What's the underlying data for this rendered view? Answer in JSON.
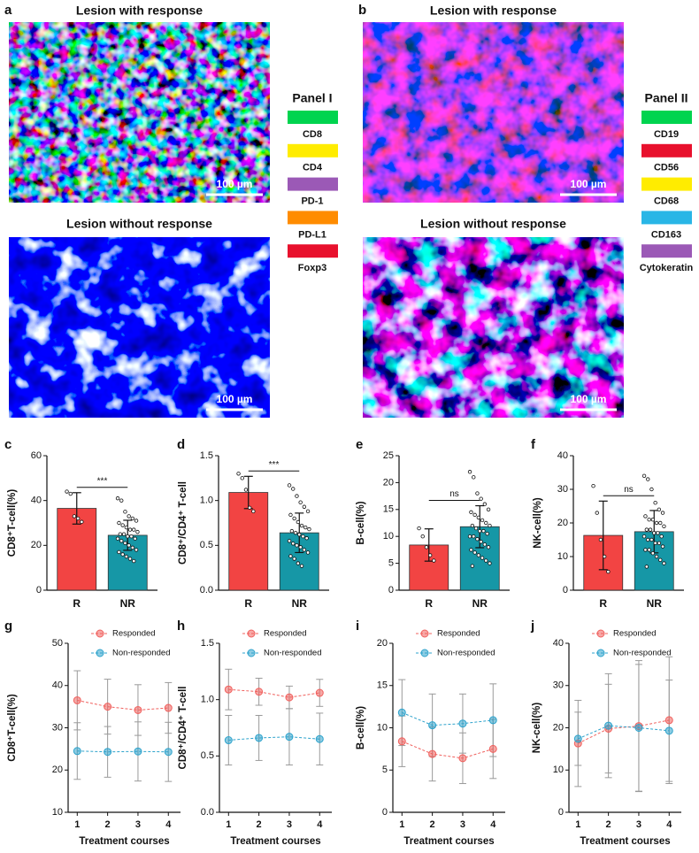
{
  "image_panels": [
    {
      "letter": "a",
      "images": [
        {
          "title": "Lesion with response",
          "scale_bar": "100 µm"
        },
        {
          "title": "Lesion without response",
          "scale_bar": "100 µm"
        }
      ],
      "legend_title": "Panel I",
      "markers": [
        {
          "name": "CD8",
          "color": "#00d44f"
        },
        {
          "name": "CD4",
          "color": "#ffec00"
        },
        {
          "name": "PD-1",
          "color": "#9b59b6"
        },
        {
          "name": "PD-L1",
          "color": "#ff8c00"
        },
        {
          "name": "Foxp3",
          "color": "#e8112d"
        }
      ]
    },
    {
      "letter": "b",
      "images": [
        {
          "title": "Lesion with response",
          "scale_bar": "100 µm"
        },
        {
          "title": "Lesion without response",
          "scale_bar": "100 µm"
        }
      ],
      "legend_title": "Panel II",
      "markers": [
        {
          "name": "CD19",
          "color": "#00d44f"
        },
        {
          "name": "CD56",
          "color": "#e8112d"
        },
        {
          "name": "CD68",
          "color": "#ffec00"
        },
        {
          "name": "CD163",
          "color": "#29b6e6"
        },
        {
          "name": "Cytokeratin",
          "color": "#9b59b6"
        }
      ]
    }
  ],
  "chart_data": [
    {
      "letter": "c",
      "type": "bar",
      "ylabel": "CD8⁺T-cell(%)",
      "categories": [
        "R",
        "NR"
      ],
      "values": [
        36.5,
        24.5
      ],
      "errors": [
        7.0,
        6.7
      ],
      "colors": [
        "#f24443",
        "#1697a6"
      ],
      "points": [
        [
          44,
          43,
          33,
          32,
          30.5
        ],
        [
          41,
          40,
          35,
          33,
          32,
          31,
          30,
          29,
          28,
          27,
          27,
          26,
          25,
          25,
          24,
          24,
          23,
          23,
          22,
          21,
          20,
          19,
          18,
          17,
          16,
          15,
          14,
          13
        ]
      ],
      "significance": "***",
      "ylim": [
        0,
        60
      ],
      "yticks": [
        0,
        20,
        40,
        60
      ]
    },
    {
      "letter": "d",
      "type": "bar",
      "ylabel": "CD8⁺/CD4⁺ T-cell",
      "categories": [
        "R",
        "NR"
      ],
      "values": [
        1.09,
        0.64
      ],
      "errors": [
        0.18,
        0.22
      ],
      "colors": [
        "#f24443",
        "#1697a6"
      ],
      "points": [
        [
          1.3,
          1.25,
          1.12,
          0.92,
          0.88
        ],
        [
          1.17,
          1.13,
          1.05,
          0.98,
          0.93,
          0.88,
          0.84,
          0.8,
          0.76,
          0.72,
          0.7,
          0.68,
          0.66,
          0.64,
          0.62,
          0.6,
          0.58,
          0.55,
          0.52,
          0.5,
          0.48,
          0.45,
          0.42,
          0.38,
          0.35,
          0.3,
          0.27
        ]
      ],
      "significance": "***",
      "ylim": [
        0,
        1.5
      ],
      "yticks": [
        {
          "value": 0,
          "label": "0.0"
        },
        0.5,
        {
          "value": 1,
          "label": "1.0"
        },
        1.5
      ]
    },
    {
      "letter": "e",
      "type": "bar",
      "ylabel": "B-cell(%)",
      "categories": [
        "R",
        "NR"
      ],
      "values": [
        8.4,
        11.8
      ],
      "errors": [
        3.0,
        3.9
      ],
      "colors": [
        "#f24443",
        "#1697a6"
      ],
      "points": [
        [
          11.5,
          10,
          8,
          6.5,
          5.5
        ],
        [
          22,
          21,
          18,
          17,
          16,
          15,
          14.5,
          14,
          13.5,
          13,
          12.5,
          12,
          12,
          11.5,
          11,
          11,
          10.5,
          10,
          10,
          9.5,
          9,
          8.5,
          8,
          7.5,
          7,
          6.5,
          6,
          5.5,
          5,
          4.5
        ]
      ],
      "significance": "ns",
      "ylim": [
        0,
        25
      ],
      "yticks": [
        0,
        5,
        10,
        15,
        20,
        25
      ]
    },
    {
      "letter": "f",
      "type": "bar",
      "ylabel": "NK-cell(%)",
      "categories": [
        "R",
        "NR"
      ],
      "values": [
        16.3,
        17.4
      ],
      "errors": [
        10.2,
        6.3
      ],
      "colors": [
        "#f24443",
        "#1697a6"
      ],
      "points": [
        [
          31,
          23,
          15,
          10,
          5.5
        ],
        [
          34,
          33,
          30,
          26,
          24,
          23,
          22,
          21,
          21,
          20,
          20,
          19,
          18,
          18,
          17,
          17,
          16,
          16,
          15,
          15,
          14,
          14,
          13,
          12,
          12,
          11,
          10,
          9,
          8,
          7
        ]
      ],
      "significance": "ns",
      "ylim": [
        0,
        40
      ],
      "yticks": [
        0,
        10,
        20,
        30,
        40
      ]
    },
    {
      "letter": "g",
      "type": "line",
      "ylabel": "CD8⁺T-cell(%)",
      "xlabel": "Treatment courses",
      "x": [
        1,
        2,
        3,
        4
      ],
      "xlim": [
        0.7,
        4.4
      ],
      "xticks": [
        1,
        2,
        3,
        4
      ],
      "ylim": [
        10,
        50
      ],
      "yticks": [
        10,
        20,
        30,
        40,
        50
      ],
      "series": [
        {
          "name": "Responded",
          "color": "#f0605d",
          "values": [
            36.5,
            35,
            34.2,
            34.7
          ],
          "errors": [
            7.0,
            6.5,
            6.0,
            6.0
          ]
        },
        {
          "name": "Non-responded",
          "color": "#2ea3cc",
          "values": [
            24.5,
            24.3,
            24.4,
            24.3
          ],
          "errors": [
            6.7,
            6.0,
            7.0,
            7.0
          ]
        }
      ]
    },
    {
      "letter": "h",
      "type": "line",
      "ylabel": "CD8⁺/CD4⁺ T-cell",
      "xlabel": "Treatment courses",
      "x": [
        1,
        2,
        3,
        4
      ],
      "xlim": [
        0.7,
        4.4
      ],
      "xticks": [
        1,
        2,
        3,
        4
      ],
      "ylim": [
        0,
        1.5
      ],
      "yticks": [
        {
          "value": 0,
          "label": "0.0"
        },
        0.5,
        {
          "value": 1,
          "label": "1.0"
        },
        1.5
      ],
      "series": [
        {
          "name": "Responded",
          "color": "#f0605d",
          "values": [
            1.09,
            1.07,
            1.02,
            1.06
          ],
          "errors": [
            0.18,
            0.12,
            0.1,
            0.12
          ]
        },
        {
          "name": "Non-responded",
          "color": "#2ea3cc",
          "values": [
            0.64,
            0.66,
            0.67,
            0.65
          ],
          "errors": [
            0.22,
            0.2,
            0.25,
            0.23
          ]
        }
      ]
    },
    {
      "letter": "i",
      "type": "line",
      "ylabel": "B-cell(%)",
      "xlabel": "Treatment courses",
      "x": [
        1,
        2,
        3,
        4
      ],
      "xlim": [
        0.7,
        4.4
      ],
      "xticks": [
        1,
        2,
        3,
        4
      ],
      "ylim": [
        0,
        20
      ],
      "yticks": [
        0,
        5,
        10,
        15,
        20
      ],
      "series": [
        {
          "name": "Responded",
          "color": "#f0605d",
          "values": [
            8.4,
            6.9,
            6.4,
            7.5
          ],
          "errors": [
            3.0,
            3.2,
            3.0,
            3.5
          ]
        },
        {
          "name": "Non-responded",
          "color": "#2ea3cc",
          "values": [
            11.8,
            10.3,
            10.5,
            10.9
          ],
          "errors": [
            3.9,
            3.7,
            3.5,
            4.3
          ]
        }
      ]
    },
    {
      "letter": "j",
      "type": "line",
      "ylabel": "NK-cell(%)",
      "xlabel": "Treatment courses",
      "x": [
        1,
        2,
        3,
        4
      ],
      "xlim": [
        0.7,
        4.4
      ],
      "xticks": [
        1,
        2,
        3,
        4
      ],
      "ylim": [
        0,
        40
      ],
      "yticks": [
        0,
        10,
        20,
        30,
        40
      ],
      "series": [
        {
          "name": "Responded",
          "color": "#f0605d",
          "values": [
            16.3,
            19.8,
            20.4,
            21.8
          ],
          "errors": [
            10.2,
            10.5,
            15.5,
            15.0
          ]
        },
        {
          "name": "Non-responded",
          "color": "#2ea3cc",
          "values": [
            17.4,
            20.5,
            20.0,
            19.3
          ],
          "errors": [
            6.3,
            12.3,
            15.0,
            12.0
          ]
        }
      ]
    }
  ]
}
